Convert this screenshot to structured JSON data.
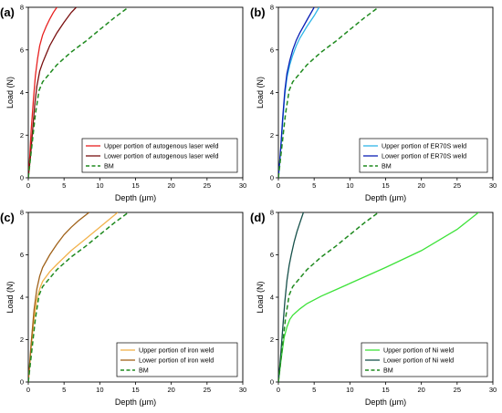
{
  "chart_data": [
    {
      "type": "line",
      "panel_label": "(a)",
      "xlabel": "Depth (μm)",
      "ylabel": "Load (N)",
      "xlim": [
        0,
        30
      ],
      "ylim": [
        0,
        8
      ],
      "xticks": [
        0,
        5,
        10,
        15,
        20,
        25,
        30
      ],
      "yticks": [
        0,
        2,
        4,
        6,
        8
      ],
      "legend_position": "bottom-right",
      "series": [
        {
          "name": "Upper portion of autogenous laser weld",
          "color": "#e8201f",
          "dash": "solid",
          "x": [
            0,
            0.2,
            0.4,
            0.7,
            1.0,
            1.3,
            1.6,
            2.0,
            2.5,
            3.0,
            3.5,
            4.0
          ],
          "y": [
            0,
            1.0,
            2.2,
            3.6,
            4.8,
            5.6,
            6.2,
            6.7,
            7.1,
            7.45,
            7.75,
            8.0
          ]
        },
        {
          "name": "Lower portion of autogenous laser weld",
          "color": "#7a1010",
          "dash": "solid",
          "x": [
            0,
            0.3,
            0.6,
            0.9,
            1.2,
            1.6,
            2.0,
            2.5,
            3.0,
            4.0,
            5.0,
            6.0,
            6.7
          ],
          "y": [
            0,
            1.0,
            2.2,
            3.4,
            4.3,
            5.0,
            5.4,
            5.8,
            6.2,
            6.8,
            7.3,
            7.75,
            8.0
          ]
        },
        {
          "name": "BM",
          "color": "#1f8a1f",
          "dash": "dashed",
          "x": [
            0,
            0.5,
            1.0,
            1.5,
            2.0,
            3.0,
            4.0,
            6.0,
            8.0,
            10.0,
            12.0,
            14.0
          ],
          "y": [
            0,
            1.5,
            3.0,
            4.1,
            4.5,
            4.9,
            5.3,
            5.9,
            6.4,
            6.95,
            7.5,
            8.0
          ]
        }
      ]
    },
    {
      "type": "line",
      "panel_label": "(b)",
      "xlabel": "Depth (μm)",
      "ylabel": "Load (N)",
      "xlim": [
        0,
        30
      ],
      "ylim": [
        0,
        8
      ],
      "xticks": [
        0,
        5,
        10,
        15,
        20,
        25,
        30
      ],
      "yticks": [
        0,
        2,
        4,
        6,
        8
      ],
      "legend_position": "bottom-right",
      "series": [
        {
          "name": "Upper portion of ER70S weld",
          "color": "#2fb5e8",
          "dash": "solid",
          "x": [
            0,
            0.3,
            0.6,
            0.9,
            1.2,
            1.6,
            2.0,
            2.5,
            3.0,
            4.0,
            5.0,
            5.7
          ],
          "y": [
            0,
            1.2,
            2.6,
            3.9,
            4.7,
            5.3,
            5.75,
            6.2,
            6.55,
            7.1,
            7.6,
            8.0
          ]
        },
        {
          "name": "Lower portion of ER70S weld",
          "color": "#0a1fb5",
          "dash": "solid",
          "x": [
            0,
            0.3,
            0.6,
            0.9,
            1.2,
            1.6,
            2.0,
            2.5,
            3.0,
            4.0,
            5.0
          ],
          "y": [
            0,
            1.3,
            2.8,
            4.1,
            4.9,
            5.5,
            6.0,
            6.45,
            6.8,
            7.4,
            8.0
          ]
        },
        {
          "name": "BM",
          "color": "#1f8a1f",
          "dash": "dashed",
          "x": [
            0,
            0.5,
            1.0,
            1.5,
            2.0,
            3.0,
            4.0,
            6.0,
            8.0,
            10.0,
            12.0,
            14.0
          ],
          "y": [
            0,
            1.5,
            3.0,
            4.1,
            4.5,
            4.9,
            5.3,
            5.9,
            6.4,
            6.95,
            7.5,
            8.0
          ]
        }
      ]
    },
    {
      "type": "line",
      "panel_label": "(c)",
      "xlabel": "Depth (μm)",
      "ylabel": "Load (N)",
      "xlim": [
        0,
        30
      ],
      "ylim": [
        0,
        8
      ],
      "xticks": [
        0,
        5,
        10,
        15,
        20,
        25,
        30
      ],
      "yticks": [
        0,
        2,
        4,
        6,
        8
      ],
      "legend_position": "bottom-right",
      "series": [
        {
          "name": "Upper portion of iron weld",
          "color": "#f2b24c",
          "dash": "solid",
          "x": [
            0,
            0.4,
            0.8,
            1.2,
            1.6,
            2.0,
            3.0,
            4.0,
            6.0,
            8.0,
            10.0,
            12.5
          ],
          "y": [
            0,
            1.6,
            3.0,
            3.9,
            4.4,
            4.75,
            5.2,
            5.55,
            6.2,
            6.75,
            7.3,
            8.0
          ]
        },
        {
          "name": "Lower portion of iron weld",
          "color": "#a0621a",
          "dash": "solid",
          "x": [
            0,
            0.4,
            0.8,
            1.2,
            1.6,
            2.0,
            3.0,
            4.0,
            5.0,
            6.0,
            7.0,
            8.5
          ],
          "y": [
            0,
            1.8,
            3.4,
            4.4,
            5.0,
            5.4,
            6.0,
            6.5,
            6.95,
            7.3,
            7.6,
            8.0
          ]
        },
        {
          "name": "BM",
          "color": "#1f8a1f",
          "dash": "dashed",
          "x": [
            0,
            0.5,
            1.0,
            1.5,
            2.0,
            3.0,
            4.0,
            6.0,
            8.0,
            10.0,
            12.0,
            14.0
          ],
          "y": [
            0,
            1.5,
            3.0,
            4.1,
            4.5,
            4.9,
            5.3,
            5.9,
            6.4,
            6.95,
            7.5,
            8.0
          ]
        }
      ]
    },
    {
      "type": "line",
      "panel_label": "(d)",
      "xlabel": "Depth (μm)",
      "ylabel": "Load (N)",
      "xlim": [
        0,
        30
      ],
      "ylim": [
        0,
        8
      ],
      "xticks": [
        0,
        5,
        10,
        15,
        20,
        25,
        30
      ],
      "yticks": [
        0,
        2,
        4,
        6,
        8
      ],
      "legend_position": "bottom-right",
      "series": [
        {
          "name": "Upper portion of Ni weld",
          "color": "#3ee23a",
          "dash": "solid",
          "x": [
            0,
            0.4,
            0.8,
            1.2,
            1.6,
            2.0,
            3.0,
            4.0,
            6.0,
            8.0,
            10.0,
            15.0,
            20.0,
            25.0,
            28.0
          ],
          "y": [
            0,
            1.1,
            2.1,
            2.6,
            2.95,
            3.15,
            3.45,
            3.7,
            4.05,
            4.35,
            4.65,
            5.4,
            6.2,
            7.2,
            8.0
          ]
        },
        {
          "name": "Lower portion of Ni weld",
          "color": "#16504a",
          "dash": "solid",
          "x": [
            0,
            0.3,
            0.6,
            0.9,
            1.2,
            1.5,
            1.8,
            2.2,
            2.6,
            3.0,
            3.5
          ],
          "y": [
            0,
            1.2,
            2.5,
            3.8,
            4.8,
            5.5,
            6.0,
            6.6,
            7.1,
            7.5,
            8.0
          ]
        },
        {
          "name": "BM",
          "color": "#1f8a1f",
          "dash": "dashed",
          "x": [
            0,
            0.5,
            1.0,
            1.5,
            2.0,
            3.0,
            4.0,
            6.0,
            8.0,
            10.0,
            12.0,
            14.0
          ],
          "y": [
            0,
            1.5,
            3.0,
            4.1,
            4.5,
            4.9,
            5.3,
            5.9,
            6.4,
            6.95,
            7.5,
            8.0
          ]
        }
      ]
    }
  ]
}
